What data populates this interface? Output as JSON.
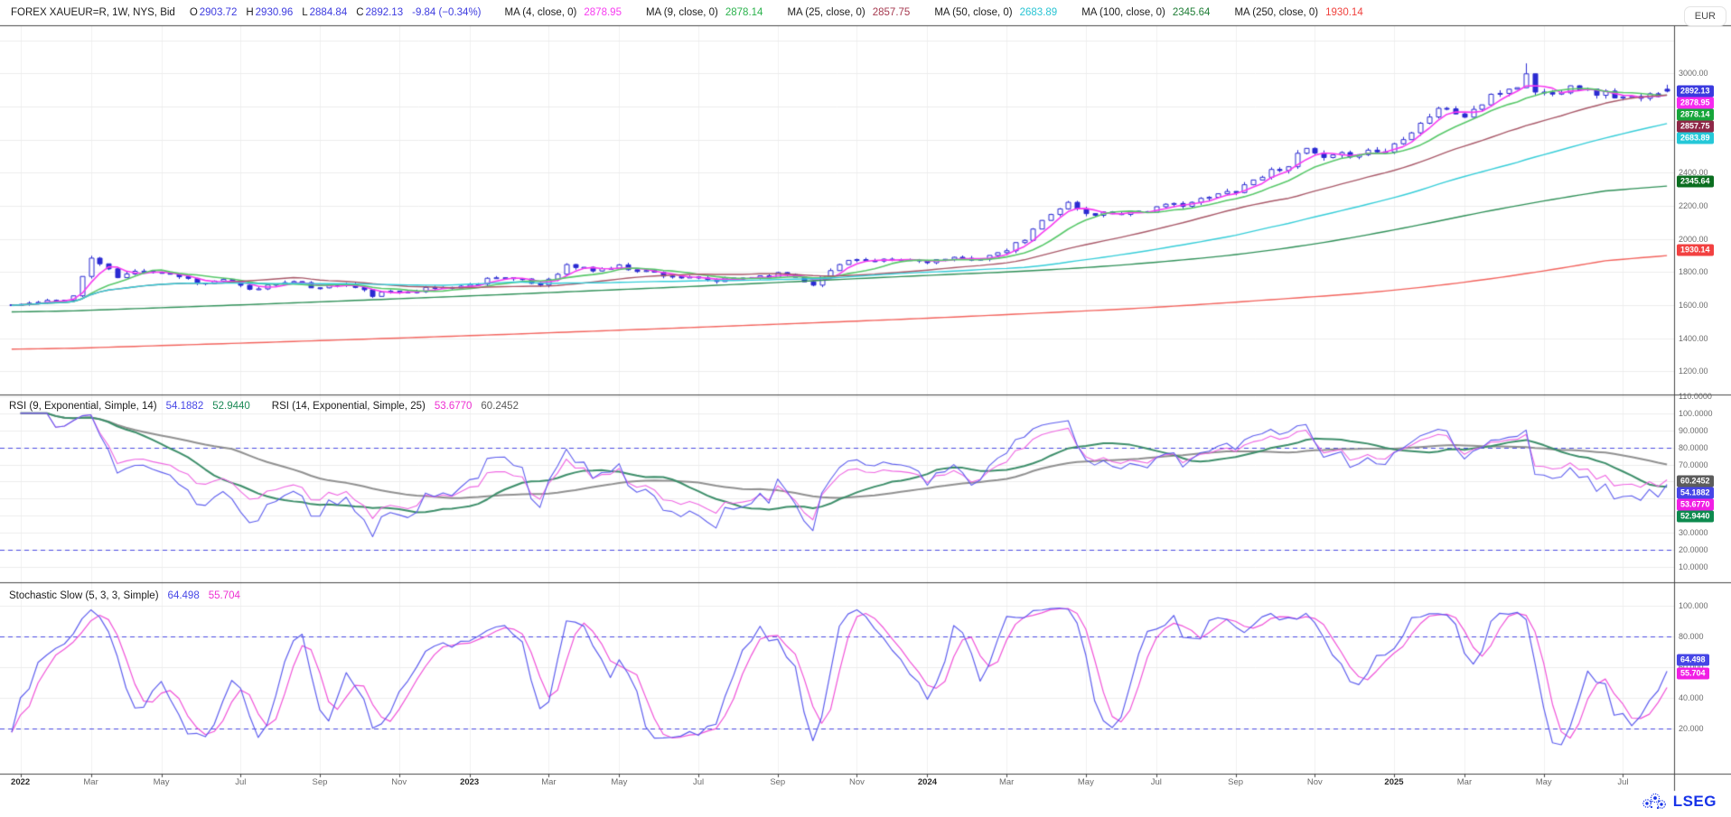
{
  "window": {
    "currency_button": "EUR"
  },
  "colors": {
    "candle": "#2b2bd2",
    "grid": "#ececec",
    "vgrid": "#f0f0f0",
    "separator": "#474747",
    "band_dash": "#4a4ae0",
    "blue_text": "#3d3bdf",
    "axis_text": "#6b6b6b",
    "brand_blue": "#1733e8"
  },
  "header": {
    "title": "FOREX XAUEUR=R, 1W, NYS, Bid",
    "open_label": "O",
    "open": "2903.72",
    "high_label": "H",
    "high": "2930.96",
    "low_label": "L",
    "low": "2884.84",
    "close_label": "C",
    "close": "2892.13",
    "change": "-9.84 (−0.34%)",
    "mas": [
      {
        "label": "MA (4, close, 0)",
        "value": "2878.95",
        "color": "#f73bf0"
      },
      {
        "label": "MA (9, close, 0)",
        "value": "2878.14",
        "color": "#2bb24c"
      },
      {
        "label": "MA (25, close, 0)",
        "value": "2857.75",
        "color": "#a63a50"
      },
      {
        "label": "MA (50, close, 0)",
        "value": "2683.89",
        "color": "#29c4d3"
      },
      {
        "label": "MA (100, close, 0)",
        "value": "2345.64",
        "color": "#1e7d35"
      },
      {
        "label": "MA (250, close, 0)",
        "value": "1930.14",
        "color": "#f0413d"
      }
    ]
  },
  "rsi_pane": {
    "label1": "RSI (9, Exponential, Simple, 14)",
    "v1": "54.1882",
    "v1_color": "#4646e6",
    "v2": "52.9440",
    "v2_color": "#1c8a56",
    "label2": "RSI (14, Exponential, Simple, 25)",
    "v3": "53.6770",
    "v3_color": "#ee2fd2",
    "v4": "60.2452",
    "v4_color": "#5a5a5a"
  },
  "stoch_pane": {
    "label": "Stochastic Slow (5, 3, 3, Simple)",
    "v1": "64.498",
    "v1_color": "#4646e6",
    "v2": "55.704",
    "v2_color": "#ee2fd2"
  },
  "price_axis": {
    "ticks": [
      {
        "v": 3000,
        "label": "3000.00"
      },
      {
        "v": 2600,
        "label": "2600.00"
      },
      {
        "v": 2400,
        "label": "2400.00"
      },
      {
        "v": 2200,
        "label": "2200.00"
      },
      {
        "v": 2000,
        "label": "2000.00"
      },
      {
        "v": 1800,
        "label": "1800.00"
      },
      {
        "v": 1600,
        "label": "1600.00"
      },
      {
        "v": 1400,
        "label": "1400.00"
      },
      {
        "v": 1200,
        "label": "1200.00"
      }
    ],
    "badges": [
      {
        "v": 2892.13,
        "label": "2892.13",
        "bg": "#3a3adf"
      },
      {
        "v": 2878.95,
        "label": "2878.95",
        "bg": "#f62af0"
      },
      {
        "v": 2878.14,
        "label": "2878.14",
        "bg": "#17a53a"
      },
      {
        "v": 2857.75,
        "label": "2857.75",
        "bg": "#8e2747"
      },
      {
        "v": 2683.89,
        "label": "2683.89",
        "bg": "#25c8d8"
      },
      {
        "v": 2345.64,
        "label": "2345.64",
        "bg": "#0b6e20"
      },
      {
        "v": 1930.14,
        "label": "1930.14",
        "bg": "#f24141"
      }
    ]
  },
  "rsi_axis": {
    "ticks": [
      {
        "v": 110,
        "label": "110.0000"
      },
      {
        "v": 100,
        "label": "100.0000"
      },
      {
        "v": 90,
        "label": "90.0000"
      },
      {
        "v": 80,
        "label": "80.0000"
      },
      {
        "v": 70,
        "label": "70.0000"
      },
      {
        "v": 60,
        "label": "60.0000"
      },
      {
        "v": 50,
        "label": "50.0000"
      },
      {
        "v": 40,
        "label": "40.0000"
      },
      {
        "v": 30,
        "label": "30.0000"
      },
      {
        "v": 20,
        "label": "20.0000"
      },
      {
        "v": 10,
        "label": "10.0000"
      }
    ],
    "badges": [
      {
        "v": 60.2452,
        "label": "60.2452",
        "bg": "#5c5c5c"
      },
      {
        "v": 54.1882,
        "label": "54.1882",
        "bg": "#4646e6"
      },
      {
        "v": 53.677,
        "label": "53.6770",
        "bg": "#f11ee4"
      },
      {
        "v": 52.944,
        "label": "52.9440",
        "bg": "#0d8a4e"
      }
    ]
  },
  "stoch_axis": {
    "ticks": [
      {
        "v": 100,
        "label": "100.000"
      },
      {
        "v": 80,
        "label": "80.000"
      },
      {
        "v": 60,
        "label": "60.000"
      },
      {
        "v": 40,
        "label": "40.000"
      },
      {
        "v": 20,
        "label": "20.000"
      }
    ],
    "badges": [
      {
        "v": 64.498,
        "label": "64.498",
        "bg": "#4646e6"
      },
      {
        "v": 55.704,
        "label": "55.704",
        "bg": "#f11ee4"
      }
    ]
  },
  "time_axis": {
    "ticks": [
      {
        "label": "2022",
        "date": "2022-01-10",
        "bold": true
      },
      {
        "label": "Mar",
        "date": "2022-03-07"
      },
      {
        "label": "May",
        "date": "2022-05-02"
      },
      {
        "label": "Jul",
        "date": "2022-07-04"
      },
      {
        "label": "Sep",
        "date": "2022-09-05"
      },
      {
        "label": "Nov",
        "date": "2022-11-07"
      },
      {
        "label": "2023",
        "date": "2023-01-02",
        "bold": true
      },
      {
        "label": "Mar",
        "date": "2023-03-06"
      },
      {
        "label": "May",
        "date": "2023-05-01"
      },
      {
        "label": "Jul",
        "date": "2023-07-03"
      },
      {
        "label": "Sep",
        "date": "2023-09-04"
      },
      {
        "label": "Nov",
        "date": "2023-11-06"
      },
      {
        "label": "2024",
        "date": "2024-01-01",
        "bold": true
      },
      {
        "label": "Mar",
        "date": "2024-03-04"
      },
      {
        "label": "May",
        "date": "2024-05-06"
      },
      {
        "label": "Jul",
        "date": "2024-07-01"
      },
      {
        "label": "Sep",
        "date": "2024-09-02"
      },
      {
        "label": "Nov",
        "date": "2024-11-04"
      },
      {
        "label": "2025",
        "date": "2025-01-06",
        "bold": true
      },
      {
        "label": "Mar",
        "date": "2025-03-03"
      },
      {
        "label": "May",
        "date": "2025-05-05"
      },
      {
        "label": "Jul",
        "date": "2025-07-07"
      }
    ]
  },
  "branding": {
    "name": "LSEG"
  },
  "chart_data": [
    {
      "type": "candlestick",
      "title": "FOREX XAUEUR=R, 1W, NYS, Bid",
      "symbol": "XAUEUR=R",
      "interval": "1W",
      "start_date": "2022-01-03",
      "weeks": 189,
      "ylim": [
        1060,
        3290
      ],
      "last": {
        "open": 2903.72,
        "high": 2930.96,
        "low": 2884.84,
        "close": 2892.13,
        "change": -9.84,
        "change_pct": -0.34
      },
      "close_anchors": [
        [
          0,
          1598
        ],
        [
          5,
          1625
        ],
        [
          7,
          1655
        ],
        [
          9,
          1885
        ],
        [
          10,
          1850
        ],
        [
          12,
          1768
        ],
        [
          15,
          1815
        ],
        [
          18,
          1790
        ],
        [
          22,
          1728
        ],
        [
          24,
          1758
        ],
        [
          27,
          1688
        ],
        [
          31,
          1748
        ],
        [
          34,
          1710
        ],
        [
          38,
          1726
        ],
        [
          41,
          1662
        ],
        [
          44,
          1683
        ],
        [
          48,
          1702
        ],
        [
          52,
          1718
        ],
        [
          55,
          1778
        ],
        [
          60,
          1722
        ],
        [
          63,
          1838
        ],
        [
          66,
          1812
        ],
        [
          69,
          1833
        ],
        [
          73,
          1795
        ],
        [
          77,
          1758
        ],
        [
          80,
          1745
        ],
        [
          84,
          1772
        ],
        [
          88,
          1790
        ],
        [
          91,
          1732
        ],
        [
          95,
          1882
        ],
        [
          98,
          1855
        ],
        [
          100,
          1872
        ],
        [
          104,
          1868
        ],
        [
          108,
          1876
        ],
        [
          112,
          1902
        ],
        [
          115,
          1995
        ],
        [
          118,
          2162
        ],
        [
          120,
          2215
        ],
        [
          122,
          2148
        ],
        [
          126,
          2162
        ],
        [
          129,
          2172
        ],
        [
          132,
          2205
        ],
        [
          135,
          2232
        ],
        [
          139,
          2298
        ],
        [
          142,
          2385
        ],
        [
          145,
          2452
        ],
        [
          147,
          2542
        ],
        [
          149,
          2478
        ],
        [
          151,
          2502
        ],
        [
          154,
          2532
        ],
        [
          156,
          2528
        ],
        [
          158,
          2618
        ],
        [
          160,
          2700
        ],
        [
          162,
          2792
        ],
        [
          165,
          2742
        ],
        [
          167,
          2815
        ],
        [
          169,
          2888
        ],
        [
          171,
          2925
        ],
        [
          172,
          2988
        ],
        [
          173,
          2895
        ],
        [
          175,
          2868
        ],
        [
          177,
          2942
        ],
        [
          179,
          2890
        ],
        [
          181,
          2878
        ],
        [
          183,
          2852
        ],
        [
          185,
          2838
        ],
        [
          186,
          2862
        ],
        [
          187,
          2878
        ],
        [
          188,
          2892.13
        ]
      ],
      "spikes": [
        {
          "week": 172,
          "high": 3060
        }
      ],
      "moving_averages": [
        {
          "period": 4,
          "color": "#f73bf0",
          "current": 2878.95
        },
        {
          "period": 9,
          "color": "#58c86a",
          "current": 2878.14
        },
        {
          "period": 25,
          "color": "#a85868",
          "current": 2857.75
        },
        {
          "period": 50,
          "color": "#35cdd8",
          "current": 2683.89
        },
        {
          "period": 100,
          "color": "#2f9058",
          "current": 2345.64,
          "anchors": [
            [
              0,
              1552
            ],
            [
              26,
              1601
            ],
            [
              52,
              1655
            ],
            [
              78,
              1714
            ],
            [
              104,
              1780
            ],
            [
              117,
              1808
            ],
            [
              130,
              1856
            ],
            [
              143,
              1925
            ],
            [
              156,
              2040
            ],
            [
              169,
              2185
            ],
            [
              182,
              2300
            ],
            [
              188,
              2345.64
            ]
          ]
        },
        {
          "period": 250,
          "color": "#f2625c",
          "current": 1930.14,
          "anchors": [
            [
              0,
              1328
            ],
            [
              26,
              1370
            ],
            [
              52,
              1415
            ],
            [
              78,
              1466
            ],
            [
              104,
              1520
            ],
            [
              130,
              1585
            ],
            [
              156,
              1680
            ],
            [
              170,
              1770
            ],
            [
              188,
              1930.14
            ]
          ]
        }
      ]
    },
    {
      "type": "line",
      "name": "RSI",
      "lengths": [
        9,
        14
      ],
      "smoothing_lengths": [
        14,
        25
      ],
      "mode": "Exponential, Simple",
      "current": {
        "rsi9": 54.1882,
        "rsi9_sma14": 52.944,
        "rsi14": 53.677,
        "rsi14_sma25": 60.2452
      },
      "bands": [
        80,
        20
      ],
      "ylim": [
        1,
        111
      ],
      "series_colors": {
        "rsi9": "#5d5dee",
        "rsi9_sma14": "#3d8e6a",
        "rsi14": "#ee66e2",
        "rsi14_sma25": "#909090"
      }
    },
    {
      "type": "line",
      "name": "Stochastic Slow",
      "params": [
        5,
        3,
        3,
        "Simple"
      ],
      "current": {
        "k": 64.498,
        "d": 55.704
      },
      "bands": [
        80,
        20
      ],
      "ylim": [
        -9,
        115
      ],
      "series_colors": {
        "k": "#5d5dee",
        "d": "#f052d8"
      }
    }
  ]
}
